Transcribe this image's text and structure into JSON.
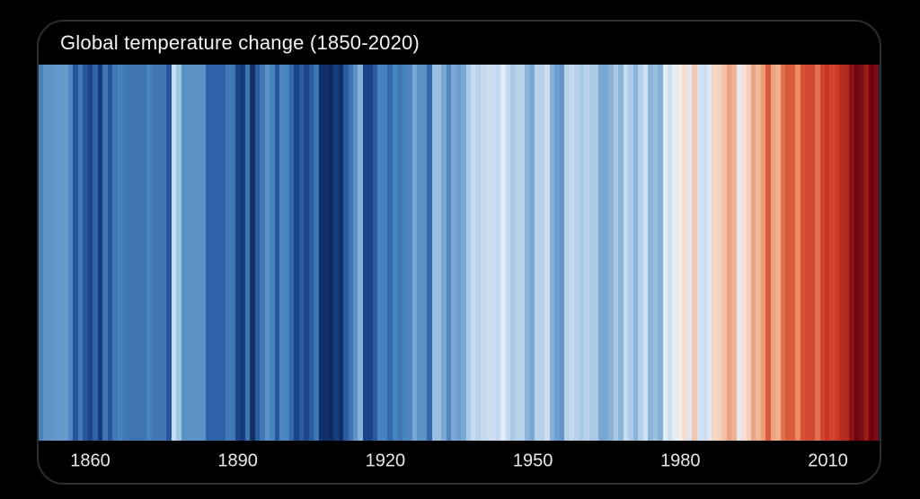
{
  "window": {
    "background_color": "#000000"
  },
  "card": {
    "background_color": "#000000",
    "border_color": "#2d2e30"
  },
  "header": {
    "title": "Global temperature change (1850-2020)",
    "text_color": "#f2f2f2"
  },
  "axis": {
    "text_color": "#e8e8e8",
    "tick_years": [
      1860,
      1890,
      1920,
      1950,
      1980,
      2010
    ],
    "tick_labels": [
      "1860",
      "1890",
      "1920",
      "1950",
      "1980",
      "2010"
    ]
  },
  "chart_data": {
    "type": "heatmap",
    "title": "Global temperature change (1850-2020)",
    "subtitle": "",
    "xlabel": "",
    "ylabel": "",
    "legend": "none",
    "grid": false,
    "x_start_year": 1850,
    "x_end_year": 2020,
    "encoding": "each vertical stripe = one year; blue = colder than average, red = warmer than average",
    "stripe_colors": [
      "#4a82bc",
      "#5f94c7",
      "#5f94c7",
      "#669aca",
      "#669aca",
      "#669aca",
      "#4f88c0",
      "#25559c",
      "#4079b5",
      "#25559c",
      "#1c4489",
      "#2f64a8",
      "#123a7c",
      "#3d74b2",
      "#25559c",
      "#4079b5",
      "#4584be",
      "#4079b5",
      "#3d74b2",
      "#3d74b2",
      "#3d74b2",
      "#3d74b2",
      "#4584be",
      "#4076b3",
      "#4076b3",
      "#4076b3",
      "#25559c",
      "#c6dbef",
      "#9ec6e3",
      "#5b92c6",
      "#5b92c6",
      "#5b92c6",
      "#5b92c6",
      "#5b92c6",
      "#2d62a8",
      "#2d62a8",
      "#2d62a8",
      "#2d62a8",
      "#4079b5",
      "#4079b5",
      "#1c4489",
      "#123a7c",
      "#3d74b2",
      "#142f63",
      "#2b5c9f",
      "#417ab6",
      "#5b8fc5",
      "#4584be",
      "#25559c",
      "#4f86bd",
      "#4584be",
      "#336aab",
      "#1c4489",
      "#2b5c9f",
      "#1c4489",
      "#2b5c9f",
      "#3d74b2",
      "#112f68",
      "#112f68",
      "#0d2a5e",
      "#173c7e",
      "#112f68",
      "#2b5c9f",
      "#3d74b2",
      "#5b92c6",
      "#85b0d8",
      "#1c4489",
      "#1c4489",
      "#2b5c9f",
      "#4584be",
      "#4584be",
      "#336aab",
      "#4584be",
      "#4079b5",
      "#4584be",
      "#4f86bd",
      "#79a8d4",
      "#5b92c6",
      "#5b92c6",
      "#336aab",
      "#9cc0e0",
      "#9cc0e0",
      "#79a8d4",
      "#4f86bd",
      "#79a8d4",
      "#6ba0ce",
      "#79a8d4",
      "#a9c9e5",
      "#c3d9ed",
      "#b7d1e9",
      "#c3d9ed",
      "#ccdeef",
      "#ccdeef",
      "#c3d9ed",
      "#dfeaf6",
      "#c3d9ed",
      "#a9c9e5",
      "#b7d1e9",
      "#b7d1e9",
      "#8cb4da",
      "#79a8d4",
      "#b7d1e9",
      "#b7d1e9",
      "#ccdeef",
      "#85b0d8",
      "#6f9fce",
      "#6393c8",
      "#b7d1e9",
      "#c3d9ed",
      "#b7d1e9",
      "#a9c9e5",
      "#b7d1e9",
      "#a9c9e5",
      "#a9c9e5",
      "#79a8d4",
      "#79a8d4",
      "#8cb4da",
      "#a9c9e5",
      "#8cb4da",
      "#c3d9ed",
      "#a9c9e5",
      "#8cb4da",
      "#b7d1e9",
      "#d4e3f1",
      "#8cb4da",
      "#9cc0e0",
      "#85b0d8",
      "#e4edf6",
      "#ccdeef",
      "#e4edf6",
      "#f0ece9",
      "#f6ddce",
      "#dde8f3",
      "#f4c7ac",
      "#d4e3f1",
      "#ccdeef",
      "#dde8f3",
      "#f6d7c3",
      "#f5d3bf",
      "#f2c0a6",
      "#eca181",
      "#efb295",
      "#e3e7f0",
      "#f8ddd0",
      "#f5cdb8",
      "#eda485",
      "#f0b89c",
      "#eb9a76",
      "#d85b3d",
      "#eda485",
      "#f0b089",
      "#e2714d",
      "#da5b3c",
      "#da5b3c",
      "#e88a64",
      "#d65136",
      "#d04a31",
      "#d04a31",
      "#e2714d",
      "#d04331",
      "#c93723",
      "#d04331",
      "#cc3b28",
      "#b52f21",
      "#b02a1e",
      "#8c1114",
      "#6b0612",
      "#7c0d12",
      "#9c1c15",
      "#700511",
      "#7c0d12"
    ]
  }
}
